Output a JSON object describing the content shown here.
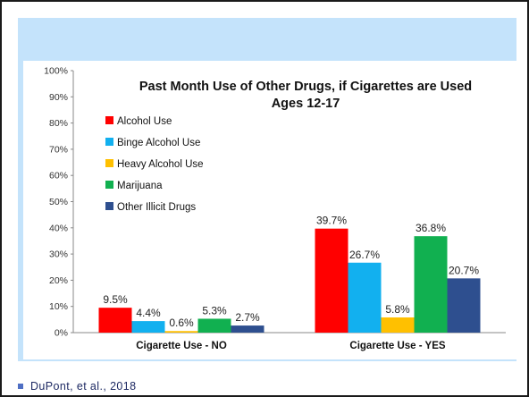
{
  "citation": "DuPont, et al., 2018",
  "colors": {
    "alcohol": "#ff0000",
    "binge": "#12b0ef",
    "heavy": "#ffc000",
    "marijuana": "#11b050",
    "illicit": "#2e4f8f"
  },
  "chart_data": {
    "type": "bar",
    "title": "Past Month Use of Other Drugs, if Cigarettes are Used",
    "subtitle": "Ages 12-17",
    "categories": [
      "Cigarette Use - NO",
      "Cigarette Use - YES"
    ],
    "yticks": [
      "0%",
      "10%",
      "20%",
      "30%",
      "40%",
      "50%",
      "60%",
      "70%",
      "80%",
      "90%",
      "100%"
    ],
    "ylim": [
      0,
      100
    ],
    "legend_position": "left",
    "series": [
      {
        "name": "Alcohol Use",
        "color": "#ff0000",
        "values": [
          9.5,
          39.7
        ],
        "labels": [
          "9.5%",
          "39.7%"
        ]
      },
      {
        "name": "Binge Alcohol Use",
        "color": "#12b0ef",
        "values": [
          4.4,
          26.7
        ],
        "labels": [
          "4.4%",
          "26.7%"
        ]
      },
      {
        "name": "Heavy Alcohol Use",
        "color": "#ffc000",
        "values": [
          0.6,
          5.8
        ],
        "labels": [
          "0.6%",
          "5.8%"
        ]
      },
      {
        "name": "Marijuana",
        "color": "#11b050",
        "values": [
          5.3,
          36.8
        ],
        "labels": [
          "5.3%",
          "36.8%"
        ]
      },
      {
        "name": "Other Illicit Drugs",
        "color": "#2e4f8f",
        "values": [
          2.7,
          20.7
        ],
        "labels": [
          "2.7%",
          "20.7%"
        ]
      }
    ]
  }
}
